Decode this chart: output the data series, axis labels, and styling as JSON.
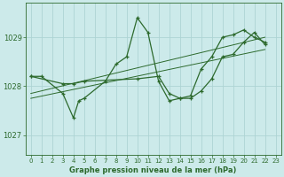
{
  "title": "Graphe pression niveau de la mer (hPa)",
  "bg_color": "#cceaea",
  "grid_color": "#add4d4",
  "line_color": "#2d6a2d",
  "xlim": [
    -0.5,
    23.5
  ],
  "ylim": [
    1026.6,
    1029.7
  ],
  "yticks": [
    1027,
    1028,
    1029
  ],
  "xticks": [
    0,
    1,
    2,
    3,
    4,
    5,
    6,
    7,
    8,
    9,
    10,
    11,
    12,
    13,
    14,
    15,
    16,
    17,
    18,
    19,
    20,
    21,
    22,
    23
  ],
  "series1_x": [
    0,
    1,
    3,
    4,
    4.5,
    5,
    7,
    8,
    9,
    10,
    11,
    12,
    13,
    14,
    15,
    16,
    17,
    18,
    19,
    20,
    21,
    22
  ],
  "series1_y": [
    1028.2,
    1028.2,
    1027.85,
    1027.35,
    1027.7,
    1027.75,
    1028.1,
    1028.45,
    1028.6,
    1029.4,
    1029.1,
    1028.1,
    1027.7,
    1027.75,
    1027.8,
    1028.35,
    1028.6,
    1029.0,
    1029.05,
    1029.15,
    1029.0,
    1028.9
  ],
  "series2_x": [
    0,
    3,
    4,
    5,
    10,
    12,
    13,
    14,
    15,
    16,
    17,
    18,
    19,
    20,
    21,
    22
  ],
  "series2_y": [
    1028.2,
    1028.05,
    1028.05,
    1028.1,
    1028.15,
    1028.2,
    1027.85,
    1027.75,
    1027.75,
    1027.9,
    1028.15,
    1028.6,
    1028.65,
    1028.9,
    1029.1,
    1028.85
  ],
  "trend1_x": [
    0,
    22
  ],
  "trend1_y": [
    1027.75,
    1028.75
  ],
  "trend2_x": [
    0,
    22
  ],
  "trend2_y": [
    1027.85,
    1029.0
  ]
}
